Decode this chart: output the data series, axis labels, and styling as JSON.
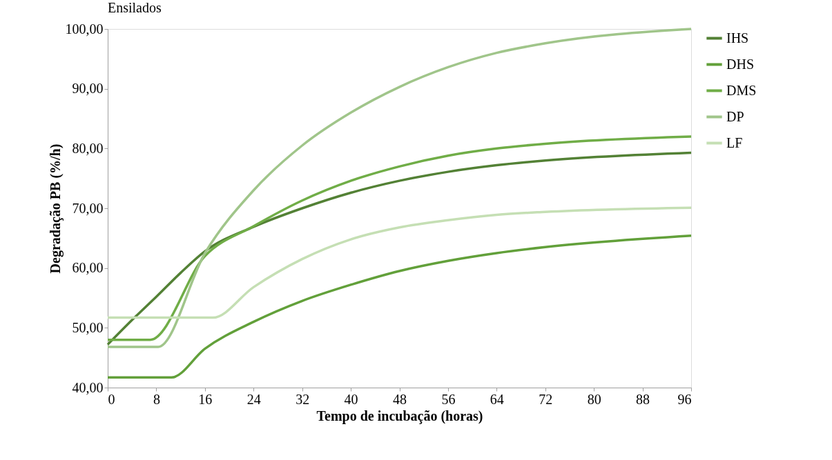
{
  "chart_data": {
    "type": "line",
    "annotations": [
      "Ensilados"
    ],
    "xlabel": "Tempo  de incubação (horas)",
    "ylabel": "Degradação PB (%/h)",
    "series": [
      {
        "name": "IHS",
        "color": "#538135",
        "x": [
          0,
          4,
          8,
          12,
          16,
          24,
          32,
          40,
          48,
          56,
          64,
          72,
          96
        ],
        "values": [
          47.2,
          51.3,
          55.2,
          59.2,
          62.8,
          66.9,
          70.0,
          72.6,
          74.6,
          76.1,
          77.2,
          78.0,
          79.3
        ]
      },
      {
        "name": "DHS",
        "color": "#62a03a",
        "x": [
          0,
          10.5,
          16,
          24,
          32,
          40,
          48,
          56,
          64,
          72,
          96
        ],
        "values": [
          41.7,
          41.7,
          46.5,
          51.0,
          54.5,
          57.2,
          59.5,
          61.2,
          62.5,
          63.5,
          65.4
        ]
      },
      {
        "name": "DMS",
        "color": "#70ad47",
        "x": [
          0,
          7,
          16,
          24,
          32,
          40,
          48,
          56,
          64,
          72,
          96
        ],
        "values": [
          48.0,
          48.0,
          62.0,
          67.0,
          71.3,
          74.6,
          77.0,
          78.8,
          80.0,
          80.8,
          82.0
        ]
      },
      {
        "name": "DP",
        "color": "#a0c58a",
        "x": [
          0,
          8.3,
          16,
          24,
          32,
          40,
          48,
          56,
          64,
          72,
          96
        ],
        "values": [
          46.8,
          46.8,
          62.5,
          73.0,
          80.5,
          86.0,
          90.3,
          93.6,
          96.0,
          97.6,
          100.0
        ]
      },
      {
        "name": "LF",
        "color": "#c5dfb4",
        "x": [
          0,
          17.3,
          24,
          32,
          40,
          48,
          56,
          64,
          72,
          96
        ],
        "values": [
          51.7,
          51.7,
          56.8,
          61.5,
          64.8,
          66.8,
          68.0,
          68.9,
          69.4,
          70.1
        ]
      }
    ],
    "xlim": [
      0,
      96
    ],
    "xticks": [
      0,
      8,
      16,
      24,
      32,
      40,
      48,
      56,
      64,
      72,
      80,
      88,
      96
    ],
    "ylim": [
      40,
      100
    ],
    "yticks": [
      {
        "value": 40,
        "label": "40,00"
      },
      {
        "value": 50,
        "label": "50,00"
      },
      {
        "value": 60,
        "label": "60,00"
      },
      {
        "value": 70,
        "label": "70,00"
      },
      {
        "value": 80,
        "label": "80,00"
      },
      {
        "value": 90,
        "label": "90,00"
      },
      {
        "value": 100,
        "label": "100,00"
      }
    ],
    "grid": false,
    "legend": "right",
    "marker": "none",
    "line_style": "solid"
  }
}
